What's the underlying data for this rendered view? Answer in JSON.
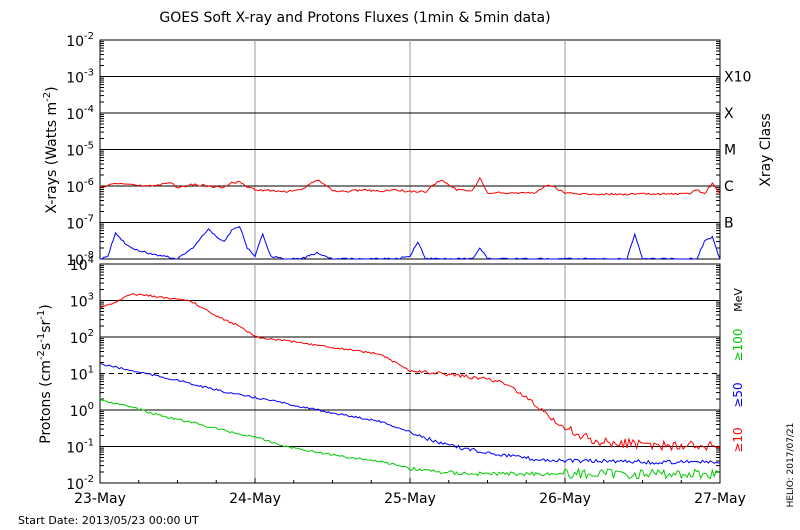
{
  "title": "GOES Soft X-ray and Protons Fluxes    (1min & 5min data)",
  "start_date": "Start Date: 2013/05/23 00:00 UT",
  "credit": "HELIO: 2017/07/21",
  "colors": {
    "red": "#ff0000",
    "blue": "#0000ff",
    "green": "#00cc00",
    "grid": "#000000",
    "daygrid": "#999999"
  },
  "chart_data": [
    {
      "type": "line",
      "panel": "xrays",
      "ylabel_main": "X-rays (Watts m",
      "ylabel_exp": "-2",
      "ylabel_close": ")",
      "yscale": "log",
      "ylim": [
        1e-08,
        0.01
      ],
      "ytick_exponents": [
        "-8",
        "-7",
        "-6",
        "-5",
        "-4",
        "-3",
        "-2"
      ],
      "right_axis_label": "Xray Class",
      "class_labels": [
        {
          "label": "B",
          "value": 1e-07
        },
        {
          "label": "C",
          "value": 1e-06
        },
        {
          "label": "M",
          "value": 1e-05
        },
        {
          "label": "X",
          "value": 0.0001
        },
        {
          "label": "X10",
          "value": 0.001
        }
      ],
      "x_unit": "days since 23-May 00:00",
      "xlim": [
        0,
        4
      ],
      "series": [
        {
          "name": "",
          "color": "#ff0000",
          "x": [
            0,
            0.05,
            0.1,
            0.2,
            0.3,
            0.4,
            0.45,
            0.5,
            0.6,
            0.7,
            0.8,
            0.85,
            0.9,
            0.95,
            1.0,
            1.1,
            1.2,
            1.3,
            1.4,
            1.5,
            1.6,
            1.7,
            1.8,
            1.9,
            2.0,
            2.1,
            2.2,
            2.3,
            2.4,
            2.45,
            2.5,
            2.6,
            2.7,
            2.8,
            2.9,
            3.0,
            3.1,
            3.2,
            3.3,
            3.4,
            3.5,
            3.6,
            3.65,
            3.7,
            3.8,
            3.85,
            3.9,
            3.95,
            4.0
          ],
          "y": [
            1e-06,
            1e-06,
            1.2e-06,
            1.1e-06,
            1e-06,
            1.1e-06,
            1.3e-06,
            9e-07,
            1.1e-06,
            1e-06,
            9e-07,
            1.2e-06,
            1.3e-06,
            9e-07,
            8e-07,
            7.5e-07,
            7e-07,
            8e-07,
            1.5e-06,
            7.5e-07,
            7e-07,
            8e-07,
            7e-07,
            8e-07,
            7e-07,
            7e-07,
            1.5e-06,
            8e-07,
            7e-07,
            1.6e-06,
            6.5e-07,
            6.5e-07,
            6.5e-07,
            6.5e-07,
            1.1e-06,
            6.5e-07,
            6e-07,
            6e-07,
            6e-07,
            6e-07,
            6e-07,
            6e-07,
            6e-07,
            6e-07,
            6e-07,
            8e-07,
            6e-07,
            1.2e-06,
            6e-07
          ]
        },
        {
          "name": "",
          "color": "#0000ff",
          "x": [
            0,
            0.05,
            0.1,
            0.15,
            0.2,
            0.3,
            0.4,
            0.5,
            0.6,
            0.7,
            0.75,
            0.8,
            0.85,
            0.9,
            0.95,
            1.0,
            1.05,
            1.1,
            1.2,
            1.3,
            1.4,
            1.5,
            1.6,
            1.7,
            1.8,
            1.9,
            2.0,
            2.05,
            2.1,
            2.2,
            2.3,
            2.4,
            2.45,
            2.5,
            2.6,
            2.7,
            2.8,
            2.9,
            3.0,
            3.1,
            3.2,
            3.3,
            3.4,
            3.45,
            3.5,
            3.6,
            3.7,
            3.8,
            3.85,
            3.9,
            3.95,
            4.0
          ],
          "y": [
            1e-08,
            1.2e-08,
            5e-08,
            3e-08,
            2e-08,
            1.5e-08,
            1.2e-08,
            1e-08,
            2e-08,
            7e-08,
            4e-08,
            3e-08,
            6e-08,
            8e-08,
            2e-08,
            1.2e-08,
            5e-08,
            1.2e-08,
            1e-08,
            1e-08,
            1.5e-08,
            1e-08,
            1e-08,
            1e-08,
            1e-08,
            1e-08,
            1.2e-08,
            3e-08,
            1e-08,
            1e-08,
            1e-08,
            1e-08,
            2e-08,
            1e-08,
            1e-08,
            1e-08,
            1e-08,
            1e-08,
            1e-08,
            1e-08,
            1e-08,
            1e-08,
            1e-08,
            5e-08,
            1e-08,
            1e-08,
            1e-08,
            1e-08,
            1e-08,
            3e-08,
            4e-08,
            1e-08
          ]
        }
      ]
    },
    {
      "type": "line",
      "panel": "protons",
      "ylabel_main": "Protons (cm",
      "ylabel_exp1": "-2",
      "ylabel_mid": "s",
      "ylabel_exp2": "-1",
      "ylabel_mid2": "sr",
      "ylabel_exp3": "-1",
      "ylabel_close": ")",
      "yscale": "log",
      "ylim": [
        0.01,
        10000
      ],
      "ytick_exponents": [
        "-2",
        "-1",
        "0",
        "1",
        "2",
        "3",
        "4"
      ],
      "threshold_dashed": 10,
      "right_unit_label": "MeV",
      "xlim": [
        0,
        4
      ],
      "x_tick_labels": [
        "23-May",
        "24-May",
        "25-May",
        "26-May",
        "27-May"
      ],
      "series": [
        {
          "name": "≥10",
          "color": "#ff0000",
          "x": [
            0,
            0.1,
            0.2,
            0.3,
            0.4,
            0.5,
            0.6,
            0.7,
            0.8,
            0.9,
            1.0,
            1.2,
            1.4,
            1.6,
            1.8,
            2.0,
            2.2,
            2.4,
            2.6,
            2.8,
            3.0,
            3.2,
            3.4,
            3.6,
            3.8,
            4.0
          ],
          "y": [
            600,
            900,
            1500,
            1400,
            1200,
            1100,
            900,
            500,
            300,
            200,
            100,
            80,
            60,
            45,
            35,
            12,
            10,
            8,
            6,
            1.5,
            0.3,
            0.15,
            0.12,
            0.1,
            0.12,
            0.1
          ]
        },
        {
          "name": "≥50",
          "color": "#0000ff",
          "x": [
            0,
            0.1,
            0.2,
            0.3,
            0.4,
            0.5,
            0.6,
            0.7,
            0.8,
            0.9,
            1.0,
            1.2,
            1.4,
            1.6,
            1.8,
            2.0,
            2.2,
            2.4,
            2.6,
            2.8,
            3.0,
            3.2,
            3.4,
            3.6,
            3.8,
            4.0
          ],
          "y": [
            18,
            15,
            12,
            10,
            8,
            6.5,
            5,
            4,
            3.2,
            2.6,
            2.2,
            1.5,
            1.0,
            0.7,
            0.5,
            0.25,
            0.12,
            0.08,
            0.06,
            0.045,
            0.04,
            0.04,
            0.04,
            0.035,
            0.04,
            0.035
          ]
        },
        {
          "name": "≥100",
          "color": "#00cc00",
          "x": [
            0,
            0.1,
            0.2,
            0.3,
            0.4,
            0.5,
            0.6,
            0.7,
            0.8,
            0.9,
            1.0,
            1.2,
            1.4,
            1.6,
            1.8,
            2.0,
            2.2,
            2.4,
            2.6,
            2.8,
            3.0,
            3.2,
            3.4,
            3.6,
            3.8,
            4.0
          ],
          "y": [
            2.0,
            1.5,
            1.2,
            0.9,
            0.7,
            0.55,
            0.45,
            0.35,
            0.28,
            0.22,
            0.18,
            0.1,
            0.07,
            0.05,
            0.04,
            0.025,
            0.02,
            0.018,
            0.018,
            0.018,
            0.018,
            0.018,
            0.018,
            0.018,
            0.018,
            0.018
          ]
        }
      ]
    }
  ]
}
